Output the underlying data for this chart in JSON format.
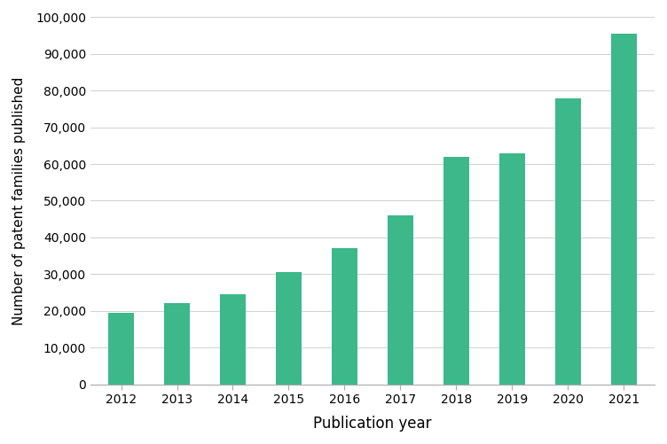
{
  "years": [
    "2012",
    "2013",
    "2014",
    "2015",
    "2016",
    "2017",
    "2018",
    "2019",
    "2020",
    "2021"
  ],
  "values": [
    19500,
    22000,
    24500,
    30500,
    37000,
    46000,
    62000,
    63000,
    78000,
    95500
  ],
  "bar_color": "#3cb88a",
  "xlabel": "Publication year",
  "ylabel": "Number of patent families published",
  "ylim": [
    0,
    100000
  ],
  "yticks": [
    0,
    10000,
    20000,
    30000,
    40000,
    50000,
    60000,
    70000,
    80000,
    90000,
    100000
  ],
  "background_color": "#ffffff",
  "grid_color": "#d0d0d0",
  "xlabel_fontsize": 12,
  "ylabel_fontsize": 11,
  "tick_fontsize": 10,
  "bar_width": 0.45
}
